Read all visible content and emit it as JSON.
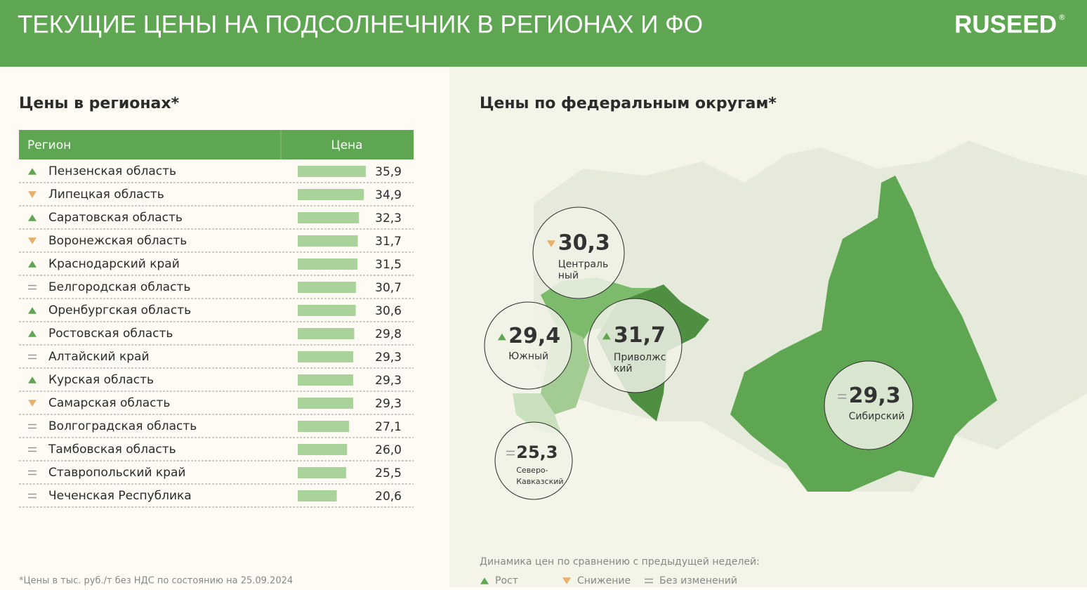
{
  "header": {
    "title": "ТЕКУЩИЕ ЦЕНЫ НА ПОДСОЛНЕЧНИК В РЕГИОНАХ И ФО",
    "logo": "RUSEED",
    "logo_mark": "®"
  },
  "regions": {
    "title": "Цены в регионах*",
    "columns": [
      "Регион",
      "Цена"
    ],
    "rows": [
      {
        "trend": "up",
        "region": "Пензенская область",
        "price": {
          "value": 35.9,
          "label": "35,9"
        }
      },
      {
        "trend": "down",
        "region": "Липецкая область",
        "price": {
          "value": 34.9,
          "label": "34,9"
        }
      },
      {
        "trend": "up",
        "region": "Саратовская область",
        "price": {
          "value": 32.3,
          "label": "32,3"
        }
      },
      {
        "trend": "down",
        "region": "Воронежская область",
        "price": {
          "value": 31.7,
          "label": "31,7"
        }
      },
      {
        "trend": "up",
        "region": "Краснодарский край",
        "price": {
          "value": 31.5,
          "label": "31,5"
        }
      },
      {
        "trend": "same",
        "region": "Белгородская область",
        "price": {
          "value": 30.7,
          "label": "30,7"
        }
      },
      {
        "trend": "up",
        "region": "Оренбургская область",
        "price": {
          "value": 30.6,
          "label": "30,6"
        }
      },
      {
        "trend": "up",
        "region": "Ростовская область",
        "price": {
          "value": 29.8,
          "label": "29,8"
        }
      },
      {
        "trend": "same",
        "region": "Алтайский край",
        "price": {
          "value": 29.3,
          "label": "29,3"
        }
      },
      {
        "trend": "up",
        "region": "Курская область",
        "price": {
          "value": 29.3,
          "label": "29,3"
        }
      },
      {
        "trend": "down",
        "region": "Самарская область",
        "price": {
          "value": 29.3,
          "label": "29,3"
        }
      },
      {
        "trend": "same",
        "region": "Волгоградская область",
        "price": {
          "value": 27.1,
          "label": "27,1"
        }
      },
      {
        "trend": "same",
        "region": "Тамбовская область",
        "price": {
          "value": 26.0,
          "label": "26,0"
        }
      },
      {
        "trend": "same",
        "region": "Ставропольский край",
        "price": {
          "value": 25.5,
          "label": "25,5"
        }
      },
      {
        "trend": "same",
        "region": "Чеченская Республика",
        "price": {
          "value": 20.6,
          "label": "20,6"
        }
      }
    ],
    "footnote": "*Цены в тыс. руб./т без НДС по состоянию на 25.09.2024"
  },
  "districts": {
    "title": "Цены по федеральным округам*",
    "items": [
      {
        "trend": "down",
        "price": "30,3",
        "name": [
          "Централь",
          "ный"
        ]
      },
      {
        "trend": "up",
        "price": "29,4",
        "name": [
          "Южный"
        ]
      },
      {
        "trend": "up",
        "price": "31,7",
        "name": [
          "Приволжс",
          "кий"
        ]
      },
      {
        "trend": "same",
        "price": "25,3",
        "name": [
          "Северо-",
          "Кавказский"
        ]
      },
      {
        "trend": "same",
        "price": "29,3",
        "name": [
          "Сибирский"
        ]
      }
    ],
    "legend": {
      "title": "Динамика цен по сравнению с предыдущей неделей:",
      "items": [
        {
          "trend": "up",
          "label": "Рост"
        },
        {
          "trend": "down",
          "label": "Снижение"
        },
        {
          "trend": "same",
          "label": "Без изменений"
        }
      ]
    }
  }
}
